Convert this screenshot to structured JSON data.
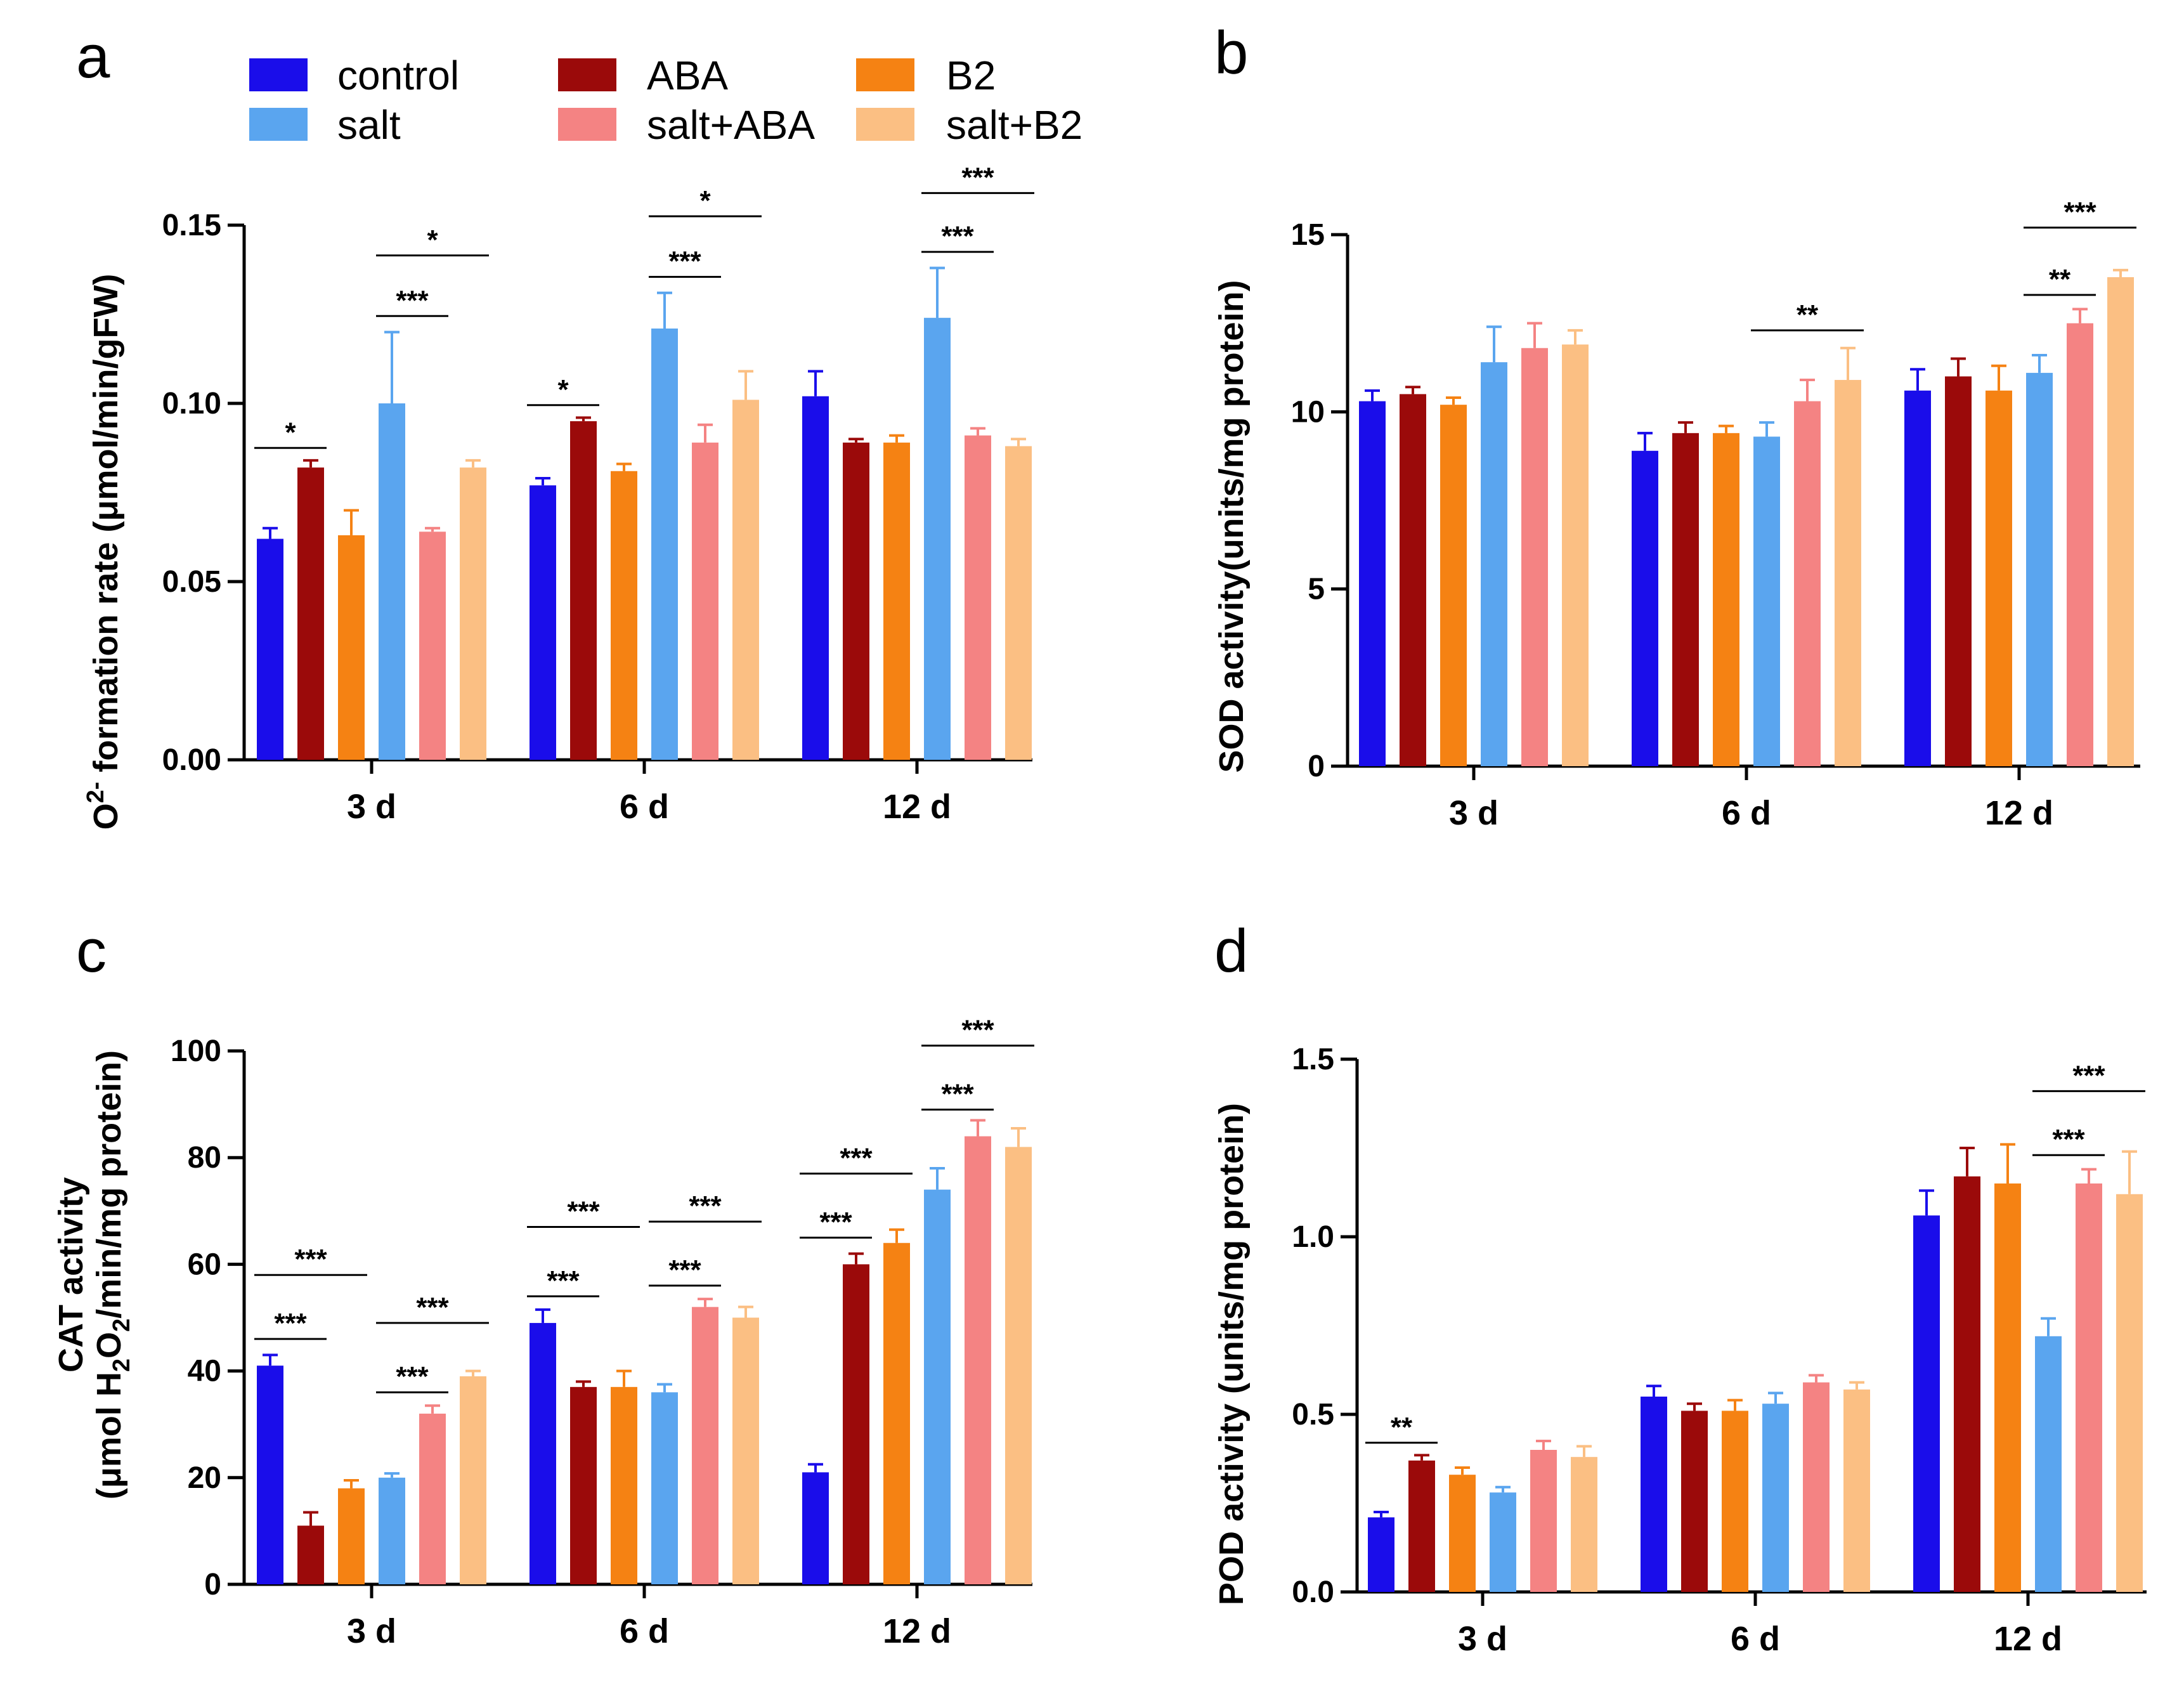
{
  "colors": {
    "control": "#1a0dea",
    "ABA": "#9b0a0a",
    "B2": "#f58213",
    "salt": "#5aa5ef",
    "salt+ABA": "#f48383",
    "salt+B2": "#fbbf83"
  },
  "legend": {
    "control": "control",
    "salt": "salt",
    "ABA": "ABA",
    "saltABA": "salt+ABA",
    "B2": "B2",
    "saltB2": "salt+B2"
  },
  "chart_data": [
    {
      "panel": "a",
      "type": "bar",
      "ylabel_pre": "O",
      "ylabel_sup": "2-",
      "ylabel_post": " formation rate (μmol/min/gFW)",
      "categories": [
        "3 d",
        "6 d",
        "12 d"
      ],
      "ylim": [
        0,
        0.15
      ],
      "yticks": [
        "0.00",
        "0.05",
        "0.10",
        "0.15"
      ],
      "series": [
        {
          "name": "control",
          "values": [
            0.062,
            0.077,
            0.102
          ],
          "errors": [
            0.003,
            0.002,
            0.007
          ]
        },
        {
          "name": "ABA",
          "values": [
            0.082,
            0.095,
            0.089
          ],
          "errors": [
            0.002,
            0.001,
            0.001
          ]
        },
        {
          "name": "B2",
          "values": [
            0.063,
            0.081,
            0.089
          ],
          "errors": [
            0.007,
            0.002,
            0.002
          ]
        },
        {
          "name": "salt",
          "values": [
            0.1,
            0.121,
            0.124
          ],
          "errors": [
            0.02,
            0.01,
            0.014
          ]
        },
        {
          "name": "salt+ABA",
          "values": [
            0.064,
            0.089,
            0.091
          ],
          "errors": [
            0.001,
            0.005,
            0.002
          ]
        },
        {
          "name": "salt+B2",
          "values": [
            0.082,
            0.101,
            0.088
          ],
          "errors": [
            0.002,
            0.008,
            0.002
          ]
        }
      ],
      "significance": [
        {
          "cat": 0,
          "from": 0,
          "to": 1,
          "label": "*",
          "level": 0.0875
        },
        {
          "cat": 0,
          "from": 3,
          "to": 4,
          "label": "***",
          "level": 0.1245
        },
        {
          "cat": 0,
          "from": 3,
          "to": 5,
          "label": "*",
          "level": 0.1415
        },
        {
          "cat": 1,
          "from": 0,
          "to": 1,
          "label": "*",
          "level": 0.0995
        },
        {
          "cat": 1,
          "from": 3,
          "to": 4,
          "label": "***",
          "level": 0.1355
        },
        {
          "cat": 1,
          "from": 3,
          "to": 5,
          "label": "*",
          "level": 0.1525
        },
        {
          "cat": 2,
          "from": 3,
          "to": 4,
          "label": "***",
          "level": 0.1425
        },
        {
          "cat": 2,
          "from": 3,
          "to": 5,
          "label": "***",
          "level": 0.159
        }
      ]
    },
    {
      "panel": "b",
      "type": "bar",
      "ylabel_pre": "SOD activity(units/mg protein)",
      "categories": [
        "3 d",
        "6 d",
        "12 d"
      ],
      "ylim": [
        0,
        15
      ],
      "yticks": [
        "0",
        "5",
        "10",
        "15"
      ],
      "series": [
        {
          "name": "control",
          "values": [
            10.3,
            8.9,
            10.6
          ],
          "errors": [
            0.3,
            0.5,
            0.6
          ]
        },
        {
          "name": "ABA",
          "values": [
            10.5,
            9.4,
            11.0
          ],
          "errors": [
            0.2,
            0.3,
            0.5
          ]
        },
        {
          "name": "B2",
          "values": [
            10.2,
            9.4,
            10.6
          ],
          "errors": [
            0.2,
            0.2,
            0.7
          ]
        },
        {
          "name": "salt",
          "values": [
            11.4,
            9.3,
            11.1
          ],
          "errors": [
            1.0,
            0.4,
            0.5
          ]
        },
        {
          "name": "salt+ABA",
          "values": [
            11.8,
            10.3,
            12.5
          ],
          "errors": [
            0.7,
            0.6,
            0.4
          ]
        },
        {
          "name": "salt+B2",
          "values": [
            11.9,
            10.9,
            13.8
          ],
          "errors": [
            0.4,
            0.9,
            0.2
          ]
        }
      ],
      "significance": [
        {
          "cat": 1,
          "from": 3,
          "to": 5,
          "label": "**",
          "level": 12.3
        },
        {
          "cat": 2,
          "from": 3,
          "to": 4,
          "label": "**",
          "level": 13.3
        },
        {
          "cat": 2,
          "from": 3,
          "to": 5,
          "label": "***",
          "level": 15.2
        }
      ]
    },
    {
      "panel": "c",
      "type": "bar",
      "ylabel_line1": "CAT activity",
      "ylabel_pre": "(μmol H",
      "ylabel_sub1": "2",
      "ylabel_mid": "O",
      "ylabel_sub2": "2",
      "ylabel_post": "/min/mg protein)",
      "categories": [
        "3 d",
        "6 d",
        "12 d"
      ],
      "ylim": [
        0,
        100
      ],
      "yticks": [
        "0",
        "20",
        "40",
        "60",
        "80",
        "100"
      ],
      "series": [
        {
          "name": "control",
          "values": [
            41,
            49,
            21
          ],
          "errors": [
            2,
            2.5,
            1.5
          ]
        },
        {
          "name": "ABA",
          "values": [
            11,
            37,
            60
          ],
          "errors": [
            2.5,
            1,
            2
          ]
        },
        {
          "name": "B2",
          "values": [
            18,
            37,
            64
          ],
          "errors": [
            1.5,
            3,
            2.5
          ]
        },
        {
          "name": "salt",
          "values": [
            20,
            36,
            74
          ],
          "errors": [
            0.8,
            1.5,
            4
          ]
        },
        {
          "name": "salt+ABA",
          "values": [
            32,
            52,
            84
          ],
          "errors": [
            1.5,
            1.5,
            3
          ]
        },
        {
          "name": "salt+B2",
          "values": [
            39,
            50,
            82
          ],
          "errors": [
            1,
            2,
            3.5
          ]
        }
      ],
      "significance": [
        {
          "cat": 0,
          "from": 0,
          "to": 1,
          "label": "***",
          "level": 46
        },
        {
          "cat": 0,
          "from": 0,
          "to": 2,
          "label": "***",
          "level": 58
        },
        {
          "cat": 0,
          "from": 3,
          "to": 4,
          "label": "***",
          "level": 36
        },
        {
          "cat": 0,
          "from": 3,
          "to": 5,
          "label": "***",
          "level": 49
        },
        {
          "cat": 1,
          "from": 0,
          "to": 1,
          "label": "***",
          "level": 54
        },
        {
          "cat": 1,
          "from": 0,
          "to": 2,
          "label": "***",
          "level": 67
        },
        {
          "cat": 1,
          "from": 3,
          "to": 4,
          "label": "***",
          "level": 56
        },
        {
          "cat": 1,
          "from": 3,
          "to": 5,
          "label": "***",
          "level": 68
        },
        {
          "cat": 2,
          "from": 0,
          "to": 1,
          "label": "***",
          "level": 65
        },
        {
          "cat": 2,
          "from": 0,
          "to": 2,
          "label": "***",
          "level": 77
        },
        {
          "cat": 2,
          "from": 3,
          "to": 4,
          "label": "***",
          "level": 89
        },
        {
          "cat": 2,
          "from": 3,
          "to": 5,
          "label": "***",
          "level": 101
        }
      ]
    },
    {
      "panel": "d",
      "type": "bar",
      "ylabel_pre": "POD activity (units/mg protein)",
      "categories": [
        "3 d",
        "6 d",
        "12 d"
      ],
      "ylim": [
        0,
        1.5
      ],
      "yticks": [
        "0.0",
        "0.5",
        "1.0",
        "1.5"
      ],
      "series": [
        {
          "name": "control",
          "values": [
            0.21,
            0.55,
            1.06
          ],
          "errors": [
            0.015,
            0.03,
            0.07
          ]
        },
        {
          "name": "ABA",
          "values": [
            0.37,
            0.51,
            1.17
          ],
          "errors": [
            0.015,
            0.02,
            0.08
          ]
        },
        {
          "name": "B2",
          "values": [
            0.33,
            0.51,
            1.15
          ],
          "errors": [
            0.02,
            0.03,
            0.11
          ]
        },
        {
          "name": "salt",
          "values": [
            0.28,
            0.53,
            0.72
          ],
          "errors": [
            0.015,
            0.03,
            0.05
          ]
        },
        {
          "name": "salt+ABA",
          "values": [
            0.4,
            0.59,
            1.15
          ],
          "errors": [
            0.025,
            0.02,
            0.04
          ]
        },
        {
          "name": "salt+B2",
          "values": [
            0.38,
            0.57,
            1.12
          ],
          "errors": [
            0.03,
            0.02,
            0.12
          ]
        }
      ],
      "significance": [
        {
          "cat": 0,
          "from": 0,
          "to": 1,
          "label": "**",
          "level": 0.42
        },
        {
          "cat": 2,
          "from": 3,
          "to": 4,
          "label": "***",
          "level": 1.23
        },
        {
          "cat": 2,
          "from": 3,
          "to": 5,
          "label": "***",
          "level": 1.41
        }
      ]
    }
  ]
}
